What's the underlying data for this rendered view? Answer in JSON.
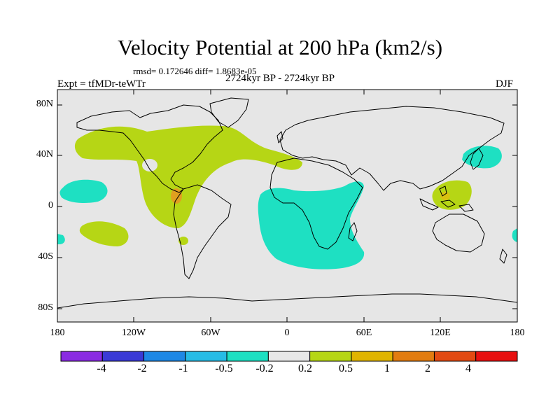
{
  "title": "Velocity Potential at 200 hPa (km2/s)",
  "stats": "rmsd= 0.172646 diff= 1.8683e-05",
  "experiment": "Expt = tfMDr-teWTr",
  "period": "2724kyr BP - 2724kyr BP",
  "season": "DJF",
  "map": {
    "projection": "cylindrical equidistant",
    "lon_range": [
      -180,
      180
    ],
    "lat_range": [
      -90,
      90
    ],
    "lat_labels": [
      "80N",
      "40N",
      "0",
      "40S",
      "80S"
    ],
    "lon_labels": [
      "180",
      "120W",
      "60W",
      "0",
      "60E",
      "120E",
      "180"
    ],
    "background_color": "#e6e6e6"
  },
  "colorbar": {
    "colors": [
      "#8a2be2",
      "#3a3ad6",
      "#1e88e5",
      "#27bce6",
      "#1ee0c2",
      "#e8e8e8",
      "#b6d615",
      "#e0b400",
      "#e27c10",
      "#e24a12",
      "#e81010"
    ],
    "labels": [
      "-4",
      "-2",
      "-1",
      "-0.5",
      "-0.2",
      "0.2",
      "0.5",
      "1",
      "2",
      "4"
    ]
  },
  "chart_data": {
    "type": "heatmap",
    "title": "Velocity Potential at 200 hPa (km2/s)",
    "units": "km2/s",
    "levels": [
      -4,
      -2,
      -1,
      -0.5,
      -0.2,
      0.2,
      0.5,
      1,
      2,
      4
    ],
    "anomaly_regions": [
      {
        "name": "north-pacific-north-america-positive",
        "level_range": "0.2 to 0.5",
        "lon": [
          -170,
          -100
        ],
        "lat": [
          30,
          50
        ]
      },
      {
        "name": "central-america-atlantic-positive",
        "level_range": "0.2 to 0.5",
        "lon": [
          -115,
          -25
        ],
        "lat": [
          -10,
          60
        ]
      },
      {
        "name": "central-america-core",
        "level_range": "0.5 to 1",
        "lon": [
          -92,
          -85
        ],
        "lat": [
          3,
          12
        ]
      },
      {
        "name": "mediterranean-positive",
        "level_range": "0.2 to 0.5",
        "lon": [
          -10,
          15
        ],
        "lat": [
          33,
          42
        ]
      },
      {
        "name": "south-pacific-positive",
        "level_range": "0.2 to 0.5",
        "lon": [
          -165,
          -135
        ],
        "lat": [
          -32,
          -18
        ]
      },
      {
        "name": "maritime-continent-positive",
        "level_range": "0.2 to 0.5",
        "lon": [
          115,
          150
        ],
        "lat": [
          -5,
          20
        ]
      },
      {
        "name": "maritime-continent-core",
        "level_range": "0.5 to 1",
        "lon": [
          120,
          130
        ],
        "lat": [
          0,
          10
        ]
      },
      {
        "name": "africa-south-atlantic-negative",
        "level_range": "-0.5 to -0.2",
        "lon": [
          -20,
          60
        ],
        "lat": [
          -45,
          20
        ]
      },
      {
        "name": "east-pacific-negative",
        "level_range": "-0.5 to -0.2",
        "lon": [
          -180,
          -150
        ],
        "lat": [
          -5,
          20
        ]
      },
      {
        "name": "northwest-pacific-negative",
        "level_range": "-0.5 to -0.2",
        "lon": [
          140,
          165
        ],
        "lat": [
          30,
          45
        ]
      },
      {
        "name": "west-pacific-negative-south",
        "level_range": "-0.5 to -0.2",
        "lon": [
          170,
          180
        ],
        "lat": [
          -25,
          -15
        ]
      }
    ]
  }
}
